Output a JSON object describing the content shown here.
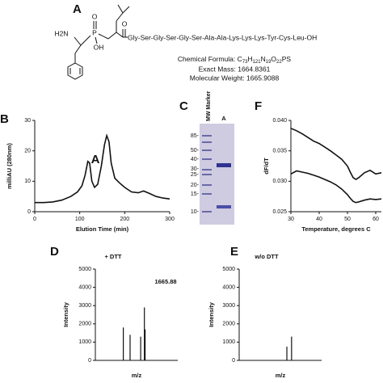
{
  "panel_a": {
    "letter": "A",
    "amine": "H2N",
    "phosphorus": "P",
    "oxo": "O",
    "hydroxyl": "OH",
    "carbonyl": "O",
    "peptide": "Gly-Ser-Gly-Ser-Gly-Ser-Ala-Ala-Lys-Lys-Lys-Tyr-Cys-Leu-OH",
    "formula_label": "Chemical Formula:",
    "formula": [
      "C",
      "73",
      "H",
      "121",
      "N",
      "19",
      "O",
      "22",
      "PS"
    ],
    "exact_mass": "Exact Mass: 1664.8361",
    "molecular_weight": "Molecular Weight: 1665.9088"
  },
  "panel_c": {
    "letter": "C",
    "lane_labels": [
      "MW Marker",
      "A"
    ],
    "markers": [
      "85-",
      "50-",
      "40-",
      "30-",
      "25-",
      "20-",
      "15-",
      "10-"
    ]
  },
  "chart_data": [
    {
      "type": "line",
      "panel": "B",
      "y_label": "milliAU (280nm)",
      "x_label": "Elution Time (min)",
      "annotation": "A",
      "x": [
        0,
        20,
        40,
        60,
        80,
        95,
        105,
        112,
        118,
        122,
        127,
        133,
        140,
        148,
        155,
        160,
        165,
        170,
        178,
        188,
        200,
        215,
        230,
        242,
        255,
        270,
        285,
        300
      ],
      "series": [
        {
          "color": "#111111",
          "values": [
            3,
            3,
            3.2,
            3.8,
            5,
            6.5,
            8.5,
            12,
            16.5,
            16,
            10,
            8,
            9,
            15,
            22,
            25,
            23,
            16,
            11,
            9.5,
            8,
            6.5,
            6.2,
            6.8,
            6,
            5,
            4.5,
            4.2
          ]
        }
      ],
      "xlim": [
        0,
        300
      ],
      "xticks": [
        0,
        100,
        200,
        300
      ],
      "ylim": [
        0,
        30
      ],
      "yticks": [
        0,
        10,
        20,
        30
      ]
    },
    {
      "type": "line",
      "panel": "F",
      "y_label": "dF/dT",
      "x_label": "Temperature, degrees C",
      "x": [
        30,
        32,
        34,
        36,
        38,
        40,
        42,
        44,
        46,
        48,
        50,
        51,
        52,
        53,
        54,
        56,
        58,
        60,
        62
      ],
      "series": [
        {
          "color": "#111111",
          "values": [
            0.0387,
            0.0383,
            0.0378,
            0.0372,
            0.0366,
            0.0362,
            0.0356,
            0.035,
            0.0343,
            0.0336,
            0.0325,
            0.0315,
            0.0306,
            0.0303,
            0.0306,
            0.0314,
            0.0318,
            0.0312,
            0.0314
          ]
        },
        {
          "color": "#111111",
          "values": [
            0.0312,
            0.0317,
            0.0315,
            0.0313,
            0.031,
            0.0307,
            0.0303,
            0.0299,
            0.0294,
            0.0287,
            0.0278,
            0.0272,
            0.0267,
            0.0265,
            0.0266,
            0.0269,
            0.0271,
            0.027,
            0.0271
          ]
        }
      ],
      "xlim": [
        30,
        62
      ],
      "xticks": [
        30,
        40,
        50,
        60
      ],
      "ylim": [
        0.025,
        0.04
      ],
      "yticks": [
        0.025,
        {
          "value": 0.03,
          "label": "0.030"
        },
        0.035,
        {
          "value": 0.04,
          "label": "0.040"
        }
      ]
    },
    {
      "type": "bar",
      "panel": "D",
      "title": "+ DTT",
      "y_label": "Intensity",
      "x_label": "m/z",
      "annotation": "1665.88",
      "x": [
        950,
        1180,
        1540,
        1665.88,
        1690
      ],
      "values": [
        1800,
        1400,
        1300,
        2900,
        1700
      ],
      "color": "#111111",
      "xlim": [
        0,
        2800
      ],
      "ylim": [
        0,
        5000
      ],
      "yticks": [
        0,
        1000,
        2000,
        3000,
        4000,
        5000
      ]
    },
    {
      "type": "bar",
      "panel": "E",
      "title": "w/o DTT",
      "y_label": "Intensity",
      "x_label": "m/z",
      "x": [
        1620,
        1780
      ],
      "values": [
        750,
        1300
      ],
      "color": "#111111",
      "xlim": [
        0,
        2800
      ],
      "ylim": [
        0,
        5000
      ],
      "yticks": [
        0,
        1000,
        2000,
        3000,
        4000,
        5000
      ]
    }
  ]
}
